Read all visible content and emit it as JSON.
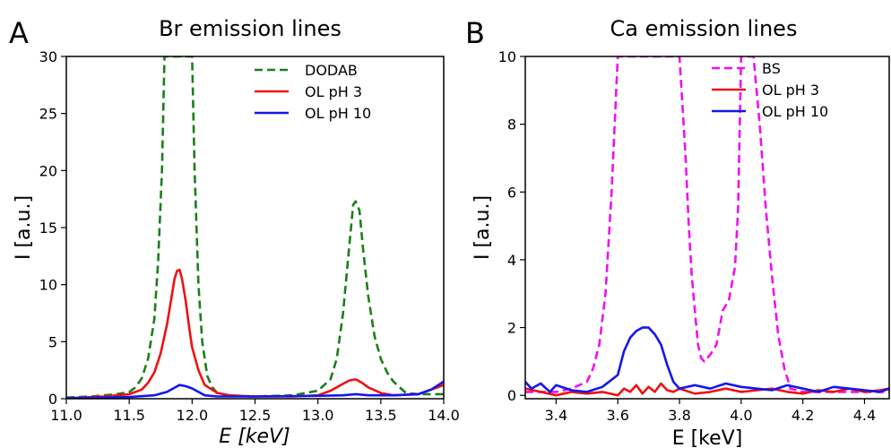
{
  "panels": [
    {
      "letter": "A"
    },
    {
      "letter": "B"
    }
  ],
  "chart_data": [
    {
      "type": "line",
      "title": "Br emission lines",
      "xlabel": "E [keV]",
      "ylabel": "I [a.u.]",
      "xlim": [
        11.0,
        14.0
      ],
      "ylim": [
        0,
        30
      ],
      "xticks": [
        "11.0",
        "11.5",
        "12.0",
        "12.5",
        "13.0",
        "13.5",
        "14.0"
      ],
      "yticks": [
        "0",
        "5",
        "10",
        "15",
        "20",
        "25",
        "30"
      ],
      "legend_position": "top-right",
      "grid": false,
      "series": [
        {
          "name": "DODAB",
          "color": "#1a7f1a",
          "dashed": true,
          "x": [
            11.0,
            11.2,
            11.4,
            11.5,
            11.55,
            11.6,
            11.65,
            11.7,
            11.73,
            11.76,
            11.78,
            12.0,
            12.02,
            12.05,
            12.08,
            12.12,
            12.16,
            12.2,
            12.3,
            12.5,
            12.8,
            13.0,
            13.1,
            13.15,
            13.2,
            13.25,
            13.28,
            13.3,
            13.33,
            13.36,
            13.4,
            13.45,
            13.5,
            13.55,
            13.6,
            13.65,
            13.7,
            13.8,
            14.0
          ],
          "y": [
            0.1,
            0.2,
            0.4,
            0.6,
            1.0,
            1.8,
            3.5,
            7.0,
            12.0,
            20.0,
            30.0,
            30.0,
            20.0,
            10.0,
            5.0,
            2.0,
            1.0,
            0.5,
            0.25,
            0.2,
            0.3,
            0.7,
            1.7,
            3.5,
            7.5,
            13.5,
            17.0,
            17.3,
            16.5,
            13.0,
            9.0,
            5.5,
            3.5,
            2.3,
            1.5,
            1.0,
            0.5,
            0.4,
            0.4
          ]
        },
        {
          "name": "OL pH 3",
          "color": "#ee1111",
          "dashed": false,
          "x": [
            11.0,
            11.3,
            11.5,
            11.6,
            11.65,
            11.7,
            11.75,
            11.8,
            11.83,
            11.86,
            11.88,
            11.9,
            11.92,
            11.95,
            11.98,
            12.0,
            12.05,
            12.1,
            12.2,
            12.3,
            12.5,
            12.8,
            13.0,
            13.1,
            13.2,
            13.25,
            13.3,
            13.35,
            13.4,
            13.5,
            13.6,
            13.8,
            14.0
          ],
          "y": [
            0.05,
            0.2,
            0.4,
            0.8,
            1.4,
            2.3,
            4.0,
            6.5,
            8.5,
            10.5,
            11.2,
            11.3,
            10.5,
            8.5,
            6.0,
            4.5,
            2.5,
            1.2,
            0.5,
            0.3,
            0.2,
            0.2,
            0.3,
            0.7,
            1.3,
            1.6,
            1.7,
            1.4,
            1.0,
            0.5,
            0.3,
            0.4,
            1.2
          ]
        },
        {
          "name": "OL pH 10",
          "color": "#1515ee",
          "dashed": false,
          "x": [
            11.0,
            11.5,
            11.7,
            11.8,
            11.85,
            11.9,
            11.95,
            12.0,
            12.05,
            12.1,
            12.2,
            12.5,
            13.0,
            13.2,
            13.3,
            13.4,
            13.6,
            13.8,
            13.9,
            14.0
          ],
          "y": [
            0.05,
            0.15,
            0.3,
            0.6,
            0.9,
            1.2,
            1.1,
            0.9,
            0.6,
            0.3,
            0.2,
            0.2,
            0.25,
            0.3,
            0.4,
            0.3,
            0.3,
            0.4,
            0.8,
            1.5
          ]
        }
      ]
    },
    {
      "type": "line",
      "title": "Ca emission lines",
      "xlabel": "E [keV]",
      "ylabel": "I [a.u.]",
      "xlim": [
        3.3,
        4.48
      ],
      "ylim": [
        -0.1,
        10
      ],
      "xticks": [
        "3.4",
        "3.6",
        "3.8",
        "4.0",
        "4.2",
        "4.4"
      ],
      "yticks": [
        "0",
        "2",
        "4",
        "6",
        "8",
        "10"
      ],
      "legend_position": "top-right",
      "grid": false,
      "series": [
        {
          "name": "BS",
          "color": "#ee11ee",
          "dashed": true,
          "x": [
            3.3,
            3.4,
            3.45,
            3.5,
            3.52,
            3.54,
            3.56,
            3.58,
            3.6,
            3.8,
            3.81,
            3.82,
            3.83,
            3.84,
            3.85,
            3.86,
            3.87,
            3.88,
            3.9,
            3.92,
            3.93,
            3.94,
            3.96,
            3.98,
            3.99,
            4.0,
            4.04,
            4.06,
            4.08,
            4.1,
            4.12,
            4.14,
            4.16,
            4.2,
            4.3,
            4.48
          ],
          "y": [
            0.1,
            0.1,
            0.2,
            0.4,
            0.8,
            1.5,
            3.0,
            6.0,
            10.0,
            10.0,
            8.5,
            7.0,
            5.0,
            3.5,
            2.5,
            1.5,
            1.1,
            1.0,
            1.2,
            1.5,
            2.0,
            2.5,
            2.8,
            3.8,
            5.5,
            10.0,
            10.0,
            8.0,
            5.5,
            3.5,
            1.8,
            0.8,
            0.2,
            0.1,
            0.1,
            0.1
          ]
        },
        {
          "name": "OL pH 3",
          "color": "#ee1111",
          "dashed": false,
          "x": [
            3.3,
            3.35,
            3.4,
            3.45,
            3.5,
            3.55,
            3.6,
            3.62,
            3.64,
            3.66,
            3.68,
            3.7,
            3.72,
            3.74,
            3.76,
            3.78,
            3.8,
            3.85,
            3.9,
            3.95,
            4.0,
            4.05,
            4.1,
            4.15,
            4.2,
            4.25,
            4.3,
            4.35,
            4.4,
            4.45,
            4.48
          ],
          "y": [
            0.2,
            0.1,
            0.0,
            0.1,
            0.05,
            0.1,
            0.0,
            0.2,
            0.1,
            0.3,
            0.05,
            0.25,
            0.1,
            0.35,
            0.15,
            0.1,
            0.2,
            0.05,
            0.1,
            0.2,
            0.1,
            0.15,
            0.2,
            0.1,
            0.05,
            0.15,
            0.1,
            0.2,
            0.1,
            0.15,
            0.2
          ]
        },
        {
          "name": "OL pH 10",
          "color": "#1515ee",
          "dashed": false,
          "x": [
            3.3,
            3.32,
            3.35,
            3.38,
            3.4,
            3.45,
            3.5,
            3.55,
            3.6,
            3.62,
            3.64,
            3.66,
            3.68,
            3.7,
            3.72,
            3.74,
            3.76,
            3.78,
            3.8,
            3.85,
            3.9,
            3.95,
            4.0,
            4.05,
            4.1,
            4.15,
            4.2,
            4.25,
            4.3,
            4.35,
            4.4,
            4.45,
            4.48
          ],
          "y": [
            0.4,
            0.2,
            0.35,
            0.1,
            0.3,
            0.15,
            0.1,
            0.25,
            0.6,
            1.3,
            1.7,
            1.9,
            2.0,
            2.0,
            1.8,
            1.5,
            0.9,
            0.4,
            0.2,
            0.3,
            0.2,
            0.35,
            0.25,
            0.2,
            0.15,
            0.3,
            0.2,
            0.1,
            0.25,
            0.2,
            0.15,
            0.1,
            0.2
          ]
        }
      ]
    }
  ]
}
